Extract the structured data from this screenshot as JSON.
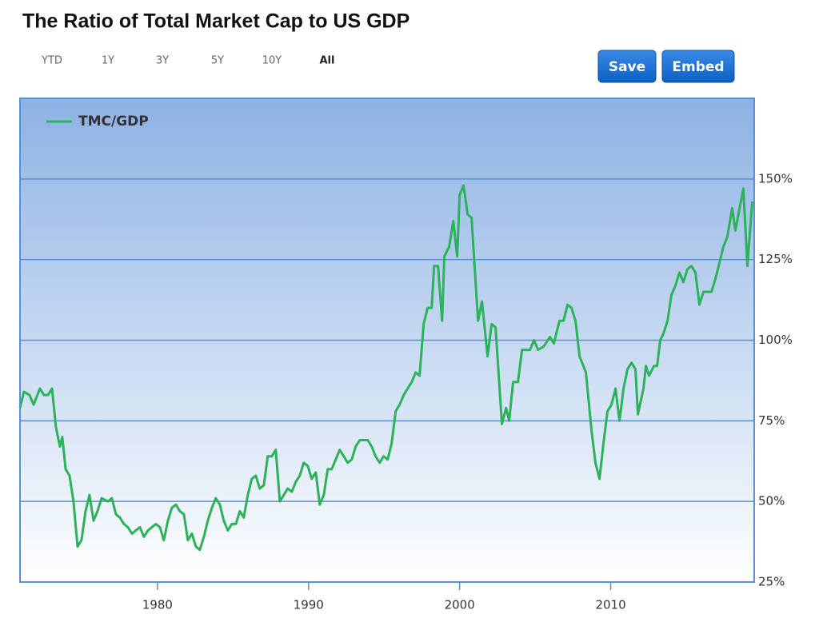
{
  "toolbar": {
    "ranges": [
      "YTD",
      "1Y",
      "3Y",
      "5Y",
      "10Y",
      "All"
    ],
    "active_range": 5,
    "buttons": [
      "Save",
      "Embed"
    ]
  },
  "chart_data": {
    "type": "line",
    "title": "The Ratio of Total Market Cap to US GDP",
    "x": [
      1970.9,
      1971.16,
      1971.53,
      1971.8,
      1972.22,
      1972.49,
      1972.75,
      1973.02,
      1973.28,
      1973.54,
      1973.7,
      1973.92,
      1974.18,
      1974.44,
      1974.71,
      1974.97,
      1975.24,
      1975.5,
      1975.77,
      1976.03,
      1976.3,
      1976.72,
      1976.98,
      1977.25,
      1977.51,
      1977.78,
      1978.04,
      1978.31,
      1978.57,
      1978.84,
      1979.1,
      1979.37,
      1979.63,
      1979.89,
      1980.16,
      1980.42,
      1980.69,
      1980.95,
      1981.22,
      1981.48,
      1981.75,
      1982.01,
      1982.28,
      1982.54,
      1982.8,
      1983.07,
      1983.33,
      1983.6,
      1983.86,
      1984.13,
      1984.39,
      1984.66,
      1984.92,
      1985.19,
      1985.45,
      1985.71,
      1985.98,
      1986.24,
      1986.51,
      1986.77,
      1987.04,
      1987.3,
      1987.57,
      1987.83,
      1988.1,
      1988.36,
      1988.62,
      1988.89,
      1989.15,
      1989.42,
      1989.68,
      1989.95,
      1990.21,
      1990.48,
      1990.74,
      1991.01,
      1991.27,
      1991.53,
      1991.8,
      1992.06,
      1992.33,
      1992.59,
      1992.86,
      1993.12,
      1993.39,
      1993.65,
      1993.92,
      1994.18,
      1994.44,
      1994.71,
      1994.97,
      1995.24,
      1995.5,
      1995.77,
      1996.03,
      1996.3,
      1996.56,
      1996.83,
      1997.09,
      1997.35,
      1997.62,
      1997.88,
      1998.15,
      1998.31,
      1998.57,
      1998.84,
      1998.99,
      1999.31,
      1999.58,
      1999.84,
      2000.0,
      2000.26,
      2000.53,
      2000.79,
      2001.22,
      2001.48,
      2001.85,
      2002.12,
      2002.38,
      2002.8,
      2003.07,
      2003.28,
      2003.54,
      2003.86,
      2004.13,
      2004.39,
      2004.66,
      2004.92,
      2005.19,
      2005.56,
      2005.98,
      2006.24,
      2006.61,
      2006.88,
      2007.14,
      2007.41,
      2007.67,
      2007.94,
      2008.36,
      2008.73,
      2008.99,
      2009.26,
      2009.52,
      2009.79,
      2010.05,
      2010.32,
      2010.58,
      2010.85,
      2011.11,
      2011.38,
      2011.64,
      2011.8,
      2012.17,
      2012.33,
      2012.54,
      2012.86,
      2013.07,
      2013.28,
      2013.49,
      2013.76,
      2014.02,
      2014.29,
      2014.55,
      2014.81,
      2015.08,
      2015.34,
      2015.61,
      2015.87,
      2016.14,
      2016.4,
      2016.67,
      2016.93,
      2017.2,
      2017.46,
      2017.72,
      2018.04,
      2018.25,
      2018.78,
      2019.05,
      2019.37
    ],
    "series": [
      {
        "name": "TMC/GDP",
        "color": "#2bb25a",
        "values": [
          79,
          84,
          83,
          80,
          85,
          83,
          83,
          85,
          73,
          67,
          70,
          60,
          58,
          50,
          36,
          38,
          47,
          52,
          44,
          47,
          51,
          50,
          51,
          46,
          45,
          43,
          42,
          40,
          41,
          42,
          39,
          41,
          42,
          43,
          42,
          38,
          44,
          48,
          49,
          47,
          46,
          38,
          40,
          36,
          35,
          39,
          44,
          48,
          51,
          49,
          44,
          41,
          43,
          43,
          47,
          45,
          52,
          57,
          58,
          54,
          55,
          64,
          64,
          66,
          50,
          52,
          54,
          53,
          56,
          58,
          62,
          61,
          57,
          59,
          49,
          52,
          60,
          60,
          63,
          66,
          64,
          62,
          63,
          67,
          69,
          69,
          69,
          67,
          64,
          62,
          64,
          63,
          68,
          78,
          80,
          83,
          85,
          87,
          90,
          89,
          105,
          110,
          110,
          123,
          123,
          106,
          126,
          129,
          137,
          126,
          145,
          148,
          139,
          138,
          106,
          112,
          95,
          105,
          104,
          74,
          79,
          75,
          87,
          87,
          97,
          97,
          97,
          100,
          97,
          98,
          101,
          99,
          106,
          106,
          111,
          110,
          106,
          95,
          90,
          72,
          62,
          57,
          68,
          78,
          80,
          85,
          75,
          85,
          91,
          93,
          91,
          77,
          85,
          92,
          89,
          92,
          92,
          100,
          102,
          106,
          114,
          117,
          121,
          118,
          122,
          123,
          121,
          111,
          115,
          115,
          115,
          119,
          124,
          129,
          132,
          141,
          134,
          147,
          123,
          143
        ]
      }
    ],
    "xlim": [
      1970.9,
      2019.5
    ],
    "xticks": [
      1980,
      1990,
      2000,
      2010
    ],
    "ylim": [
      25,
      175
    ],
    "yticks": [
      {
        "value": 25,
        "label": "25%"
      },
      {
        "value": 50,
        "label": "50%"
      },
      {
        "value": 75,
        "label": "75%"
      },
      {
        "value": 100,
        "label": "100%"
      },
      {
        "value": 125,
        "label": "125%"
      },
      {
        "value": 150,
        "label": "150%"
      }
    ],
    "grid": true,
    "legend": "top-left",
    "y_axis_side": "right"
  }
}
